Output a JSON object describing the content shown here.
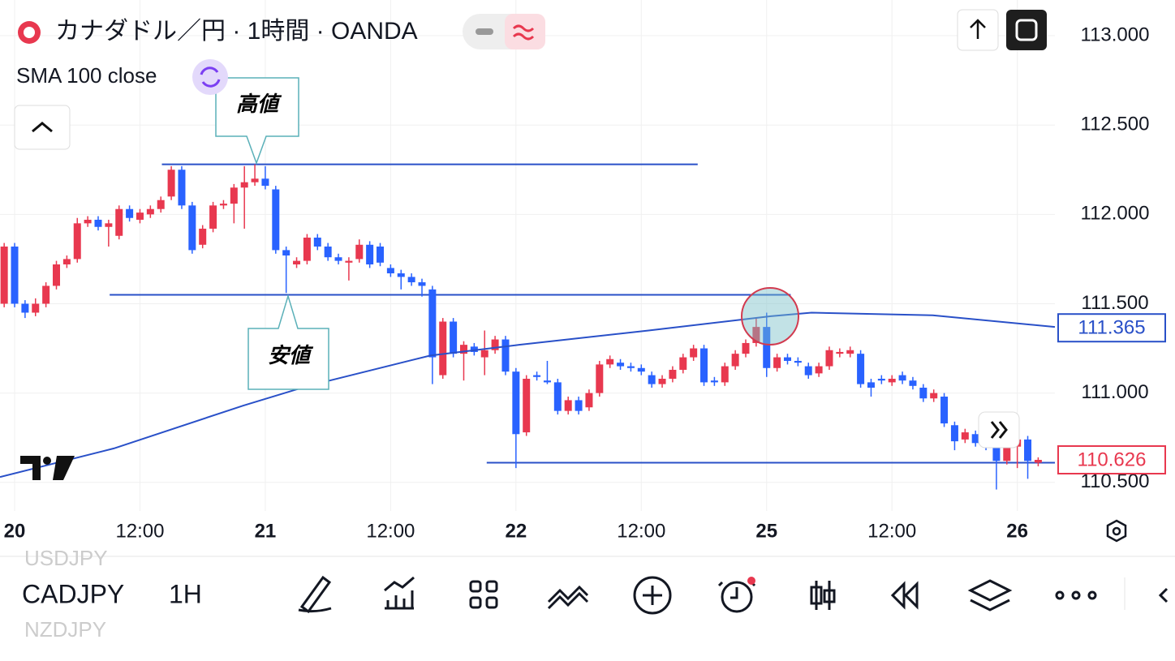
{
  "header": {
    "title": "カナダドル／円 · 1時間 · OANDA",
    "indicator": "SMA 100 close"
  },
  "chart_data": {
    "type": "candlestick",
    "up_color": "#e8384f",
    "down_color": "#2962ff",
    "xlim": [
      -0.4,
      100.6
    ],
    "ylim": [
      110.34,
      113.2
    ],
    "xticks": [
      {
        "value": 1,
        "label": "20"
      },
      {
        "value": 13,
        "label": "12:00"
      },
      {
        "value": 25,
        "label": "21"
      },
      {
        "value": 37,
        "label": "12:00"
      },
      {
        "value": 49,
        "label": "22"
      },
      {
        "value": 61,
        "label": "12:00"
      },
      {
        "value": 73,
        "label": "25"
      },
      {
        "value": 85,
        "label": "12:00"
      },
      {
        "value": 97,
        "label": "26"
      }
    ],
    "yticks": [
      {
        "value": 113,
        "label": "113.000"
      },
      {
        "value": 112.5,
        "label": "112.500"
      },
      {
        "value": 112,
        "label": "112.000"
      },
      {
        "value": 111.5,
        "label": "111.500"
      },
      {
        "value": 111,
        "label": "111.000"
      },
      {
        "value": 110.5,
        "label": "110.500"
      }
    ],
    "grid": true,
    "open": [
      111.5,
      111.82,
      111.5,
      111.45,
      111.5,
      111.6,
      111.72,
      111.75,
      111.95,
      111.97,
      111.93,
      111.88,
      112.03,
      111.97,
      112.0,
      112.03,
      112.1,
      112.25,
      112.05,
      111.83,
      111.92,
      112.05,
      112.06,
      112.15,
      112.18,
      112.2,
      112.14,
      111.8,
      111.72,
      111.74,
      111.87,
      111.82,
      111.76,
      111.73,
      111.75,
      111.83,
      111.82,
      111.7,
      111.67,
      111.65,
      111.62,
      111.58,
      111.1,
      111.4,
      111.22,
      111.26,
      111.2,
      111.24,
      111.3,
      111.12,
      110.78,
      111.1,
      111.07,
      111.06,
      110.9,
      110.96,
      110.92,
      111.0,
      111.16,
      111.17,
      111.15,
      111.14,
      111.1,
      111.05,
      111.08,
      111.13,
      111.2,
      111.25,
      111.07,
      111.06,
      111.15,
      111.22,
      111.28,
      111.37,
      111.14,
      111.2,
      111.18,
      111.15,
      111.11,
      111.15,
      111.22,
      111.22,
      111.22,
      111.06,
      111.08,
      111.06,
      111.1,
      111.07,
      111.03,
      110.97,
      110.98,
      110.82,
      110.74,
      110.77,
      110.72,
      110.7,
      110.62,
      110.7,
      110.74,
      110.61
    ],
    "high": [
      111.84,
      111.84,
      111.52,
      111.53,
      111.62,
      111.74,
      111.77,
      111.98,
      111.99,
      111.99,
      111.97,
      112.05,
      112.05,
      112.03,
      112.05,
      112.1,
      112.27,
      112.27,
      112.07,
      111.94,
      112.07,
      112.08,
      112.17,
      112.27,
      112.28,
      112.27,
      112.16,
      111.82,
      111.76,
      111.89,
      111.89,
      111.84,
      111.78,
      111.76,
      111.86,
      111.85,
      111.84,
      111.72,
      111.69,
      111.67,
      111.64,
      111.6,
      111.42,
      111.42,
      111.29,
      111.28,
      111.35,
      111.32,
      111.32,
      111.14,
      111.1,
      111.12,
      111.18,
      111.08,
      110.98,
      110.98,
      111.02,
      111.18,
      111.21,
      111.19,
      111.17,
      111.16,
      111.12,
      111.1,
      111.15,
      111.22,
      111.27,
      111.27,
      111.09,
      111.17,
      111.24,
      111.3,
      111.42,
      111.45,
      111.22,
      111.22,
      111.2,
      111.17,
      111.17,
      111.26,
      111.25,
      111.26,
      111.24,
      111.08,
      111.1,
      111.1,
      111.12,
      111.09,
      111.05,
      111.02,
      111.0,
      110.84,
      110.8,
      110.79,
      110.74,
      110.72,
      110.72,
      110.76,
      110.76,
      110.64
    ],
    "low": [
      111.48,
      111.48,
      111.42,
      111.43,
      111.48,
      111.58,
      111.7,
      111.73,
      111.93,
      111.91,
      111.82,
      111.86,
      111.96,
      111.95,
      111.98,
      112.01,
      112.08,
      112.03,
      111.78,
      111.81,
      111.9,
      112.03,
      111.95,
      111.92,
      112.16,
      112.14,
      111.78,
      111.56,
      111.7,
      111.72,
      111.8,
      111.74,
      111.72,
      111.63,
      111.73,
      111.7,
      111.71,
      111.65,
      111.58,
      111.6,
      111.54,
      111.05,
      111.08,
      111.2,
      111.07,
      111.21,
      111.1,
      111.22,
      111.1,
      110.58,
      110.76,
      111.07,
      111.05,
      110.88,
      110.88,
      110.88,
      110.9,
      110.98,
      111.14,
      111.13,
      111.12,
      111.1,
      111.03,
      111.03,
      111.06,
      111.11,
      111.18,
      111.04,
      111.04,
      111.04,
      111.13,
      111.2,
      111.26,
      111.09,
      111.12,
      111.16,
      111.15,
      111.08,
      111.09,
      111.13,
      111.2,
      111.2,
      111.03,
      110.98,
      111.05,
      111.04,
      111.05,
      111.02,
      110.95,
      110.95,
      110.81,
      110.68,
      110.72,
      110.7,
      110.68,
      110.46,
      110.6,
      110.58,
      110.52,
      110.59
    ],
    "close": [
      111.82,
      111.5,
      111.45,
      111.5,
      111.6,
      111.72,
      111.75,
      111.95,
      111.97,
      111.93,
      111.95,
      112.03,
      111.98,
      112.01,
      112.03,
      112.08,
      112.25,
      112.05,
      111.8,
      111.92,
      112.05,
      112.06,
      112.15,
      112.18,
      112.2,
      112.16,
      111.8,
      111.77,
      111.74,
      111.87,
      111.82,
      111.76,
      111.74,
      111.74,
      111.83,
      111.72,
      111.73,
      111.67,
      111.65,
      111.62,
      111.6,
      111.2,
      111.4,
      111.22,
      111.27,
      111.23,
      111.24,
      111.3,
      111.12,
      110.77,
      111.08,
      111.09,
      111.06,
      110.9,
      110.96,
      110.9,
      111.0,
      111.16,
      111.19,
      111.15,
      111.14,
      111.12,
      111.05,
      111.08,
      111.13,
      111.2,
      111.25,
      111.06,
      111.06,
      111.15,
      111.22,
      111.28,
      111.37,
      111.14,
      111.2,
      111.18,
      111.17,
      111.1,
      111.15,
      111.24,
      111.23,
      111.24,
      111.05,
      111.03,
      111.07,
      111.08,
      111.07,
      111.04,
      110.97,
      111.0,
      110.83,
      110.73,
      110.78,
      110.72,
      110.7,
      110.62,
      110.7,
      110.74,
      110.62,
      110.626
    ],
    "sma": {
      "color": "#2950c8",
      "x": [
        -0.4,
        10.5,
        22.9,
        29.1,
        40.8,
        49.3,
        61.7,
        73.4,
        77.3,
        88.9,
        100.6
      ],
      "values": [
        110.53,
        110.69,
        110.93,
        111.04,
        111.21,
        111.27,
        111.35,
        111.43,
        111.45,
        111.435,
        111.37
      ]
    },
    "hlines": [
      {
        "value": 112.28,
        "from": 15.1,
        "to": 66.4
      },
      {
        "value": 111.55,
        "from": 10.1,
        "to": 75.3
      },
      {
        "value": 110.61,
        "from": 46.2,
        "to": 100.6
      }
    ],
    "price_labels": [
      {
        "value": 111.365,
        "label": "111.365",
        "color": "#2950c8"
      },
      {
        "value": 110.626,
        "label": "110.626",
        "color": "#e8384f"
      }
    ],
    "annotations": [
      "高値",
      "安値"
    ]
  },
  "toolbar": {
    "prev_symbol": "USDJPY",
    "symbol": "CADJPY",
    "interval": "1H",
    "next_symbol": "NZDJPY"
  }
}
